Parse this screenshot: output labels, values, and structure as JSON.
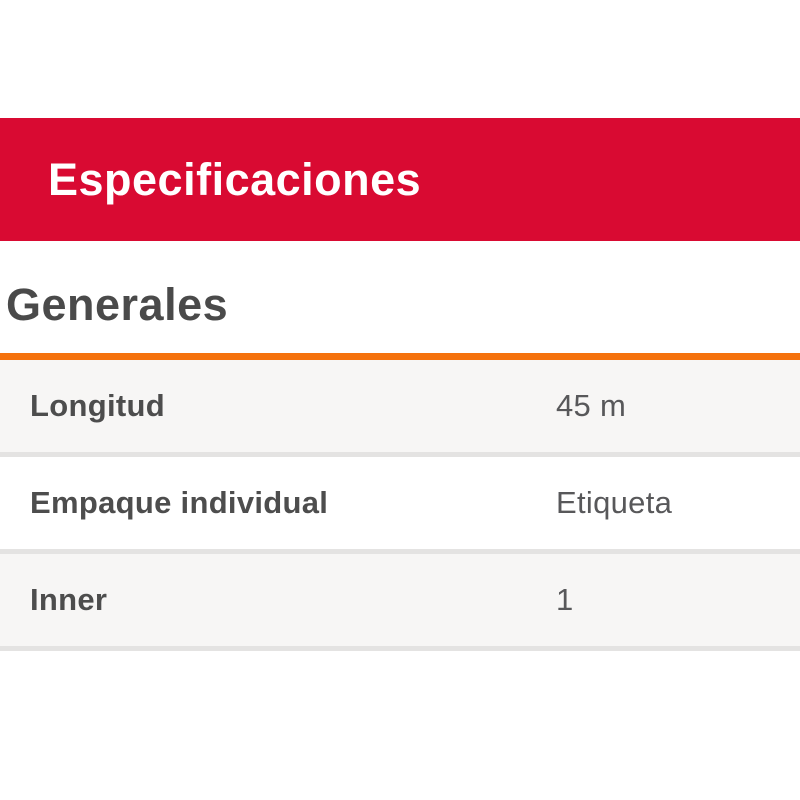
{
  "banner": {
    "title": "Especificaciones",
    "bg_color": "#d90a32",
    "text_color": "#ffffff"
  },
  "section": {
    "heading": "Generales",
    "heading_color": "#4a4a4a",
    "underline_color": "#f5720d"
  },
  "spec_table": {
    "rows": [
      {
        "label": "Longitud",
        "value": "45 m"
      },
      {
        "label": "Empaque individual",
        "value": "Etiqueta"
      },
      {
        "label": "Inner",
        "value": "1"
      }
    ],
    "row_stripe_color": "#f7f6f5",
    "row_alt_color": "#ffffff",
    "divider_color": "#e4e3e2",
    "label_color": "#4d4d4d",
    "value_color": "#58585a"
  }
}
